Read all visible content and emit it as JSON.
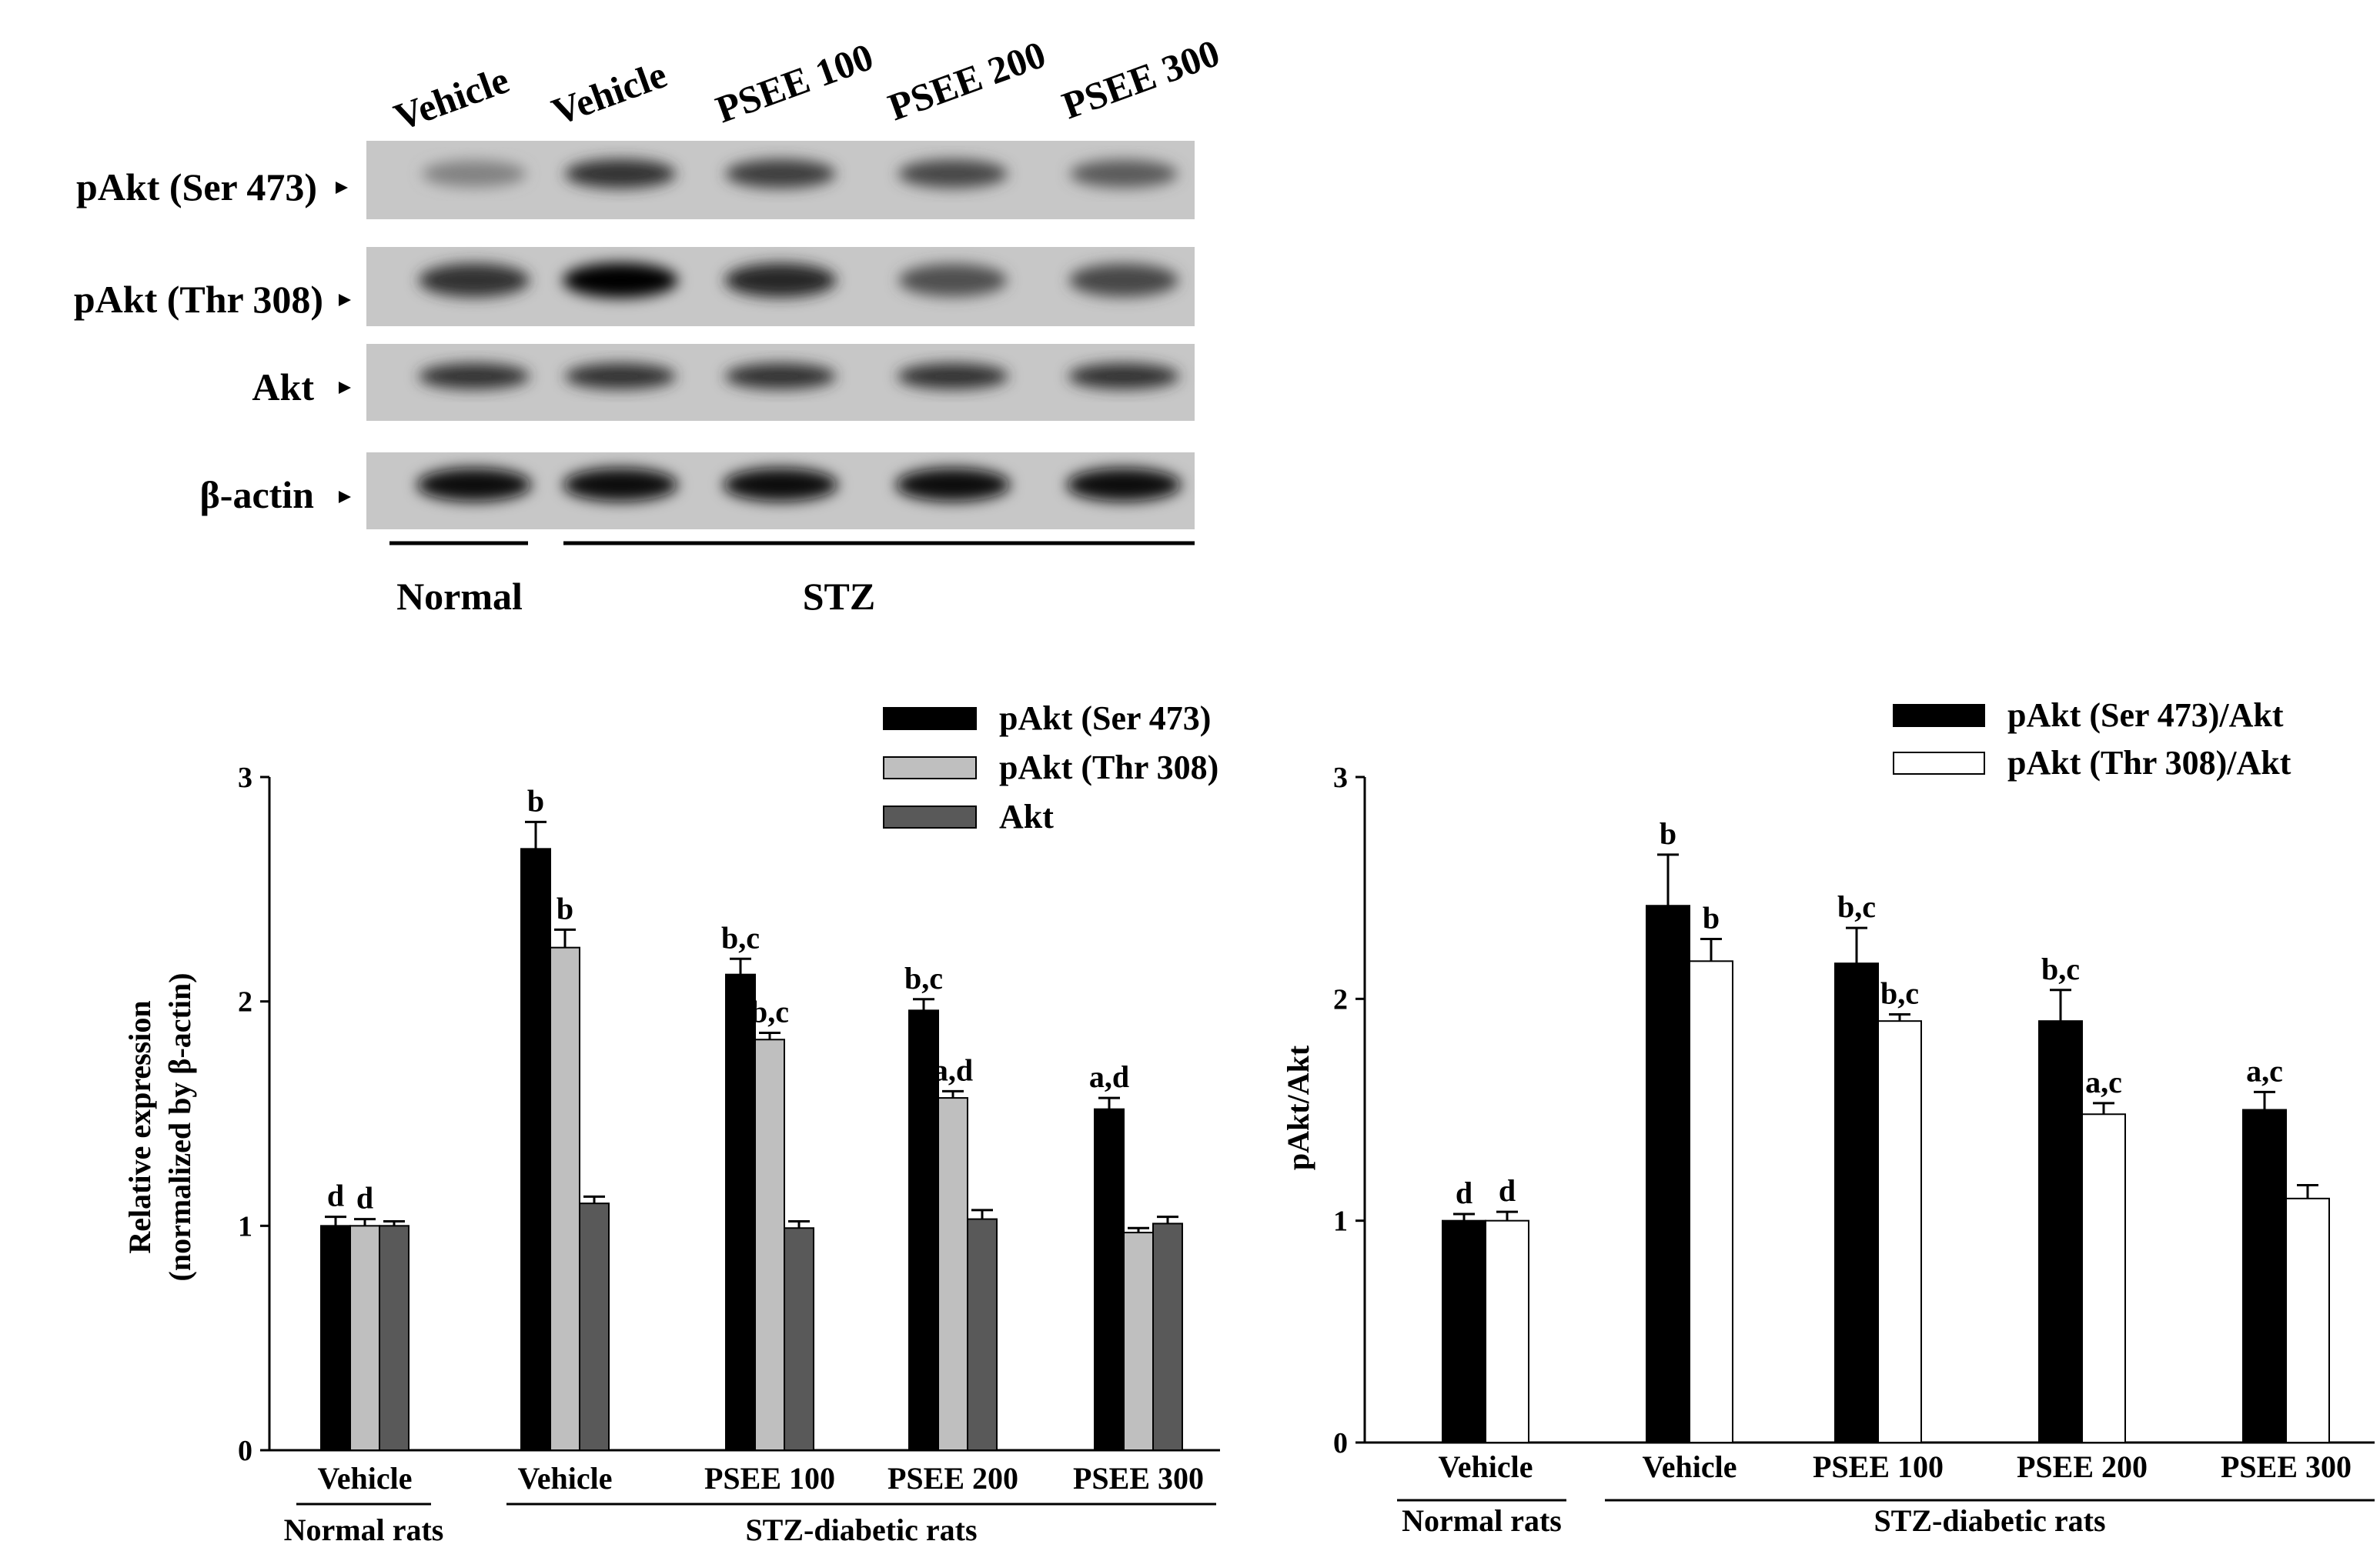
{
  "blot": {
    "lanes": [
      "Vehicle",
      "Vehicle",
      "PSEE 100",
      "PSEE 200",
      "PSEE 300"
    ],
    "rows": [
      "pAkt (Ser 473)",
      "pAkt (Thr 308)",
      "Akt",
      "β-actin"
    ],
    "groups": [
      "Normal",
      "STZ"
    ],
    "intensity": [
      [
        0.35,
        0.75,
        0.7,
        0.65,
        0.55
      ],
      [
        0.75,
        1.0,
        0.8,
        0.6,
        0.65
      ],
      [
        0.75,
        0.75,
        0.75,
        0.75,
        0.75
      ],
      [
        0.95,
        0.95,
        0.95,
        0.95,
        0.95
      ]
    ]
  },
  "chart_data": [
    {
      "type": "bar",
      "categories": [
        "Vehicle",
        "Vehicle",
        "PSEE 100",
        "PSEE 200",
        "PSEE 300"
      ],
      "groups": [
        "Normal rats",
        "STZ-diabetic rats"
      ],
      "ylabel": "Relative expression",
      "ylabel2": "(normalized by β-actin)",
      "ylim": [
        0,
        3
      ],
      "yticks": [
        "0",
        "1",
        "2",
        "3"
      ],
      "legend_position": "top-right",
      "series": [
        {
          "name": "pAkt (Ser 473)",
          "color": "#000000",
          "values": [
            1.0,
            2.68,
            2.12,
            1.96,
            1.52
          ],
          "errors": [
            0.04,
            0.12,
            0.07,
            0.05,
            0.05
          ],
          "labels": [
            "d",
            "b",
            "b,c",
            "b,c",
            "a,d"
          ]
        },
        {
          "name": "pAkt (Thr 308)",
          "color": "#bfbfbf",
          "values": [
            1.0,
            2.24,
            1.83,
            1.57,
            0.97
          ],
          "errors": [
            0.03,
            0.08,
            0.03,
            0.03,
            0.02
          ],
          "labels": [
            "d",
            "b",
            "b,c",
            "a,d",
            ""
          ]
        },
        {
          "name": "Akt",
          "color": "#595959",
          "values": [
            1.0,
            1.1,
            0.99,
            1.03,
            1.01
          ],
          "errors": [
            0.02,
            0.03,
            0.03,
            0.04,
            0.03
          ],
          "labels": [
            "",
            "",
            "",
            "",
            ""
          ]
        }
      ]
    },
    {
      "type": "bar",
      "categories": [
        "Vehicle",
        "Vehicle",
        "PSEE 100",
        "PSEE 200",
        "PSEE 300"
      ],
      "groups": [
        "Normal rats",
        "STZ-diabetic rats"
      ],
      "ylabel": "pAkt/Akt",
      "ylim": [
        0,
        3
      ],
      "yticks": [
        "0",
        "1",
        "2",
        "3"
      ],
      "legend_position": "top-right",
      "series": [
        {
          "name": "pAkt (Ser 473)/Akt",
          "color": "#000000",
          "values": [
            1.0,
            2.42,
            2.16,
            1.9,
            1.5
          ],
          "errors": [
            0.03,
            0.23,
            0.16,
            0.14,
            0.08
          ],
          "labels": [
            "d",
            "b",
            "b,c",
            "b,c",
            "a,c"
          ]
        },
        {
          "name": "pAkt (Thr 308)/Akt",
          "color": "#ffffff",
          "values": [
            1.0,
            2.17,
            1.9,
            1.48,
            1.1
          ],
          "errors": [
            0.04,
            0.1,
            0.03,
            0.05,
            0.06
          ],
          "labels": [
            "d",
            "b",
            "b,c",
            "a,c",
            ""
          ]
        }
      ]
    }
  ]
}
